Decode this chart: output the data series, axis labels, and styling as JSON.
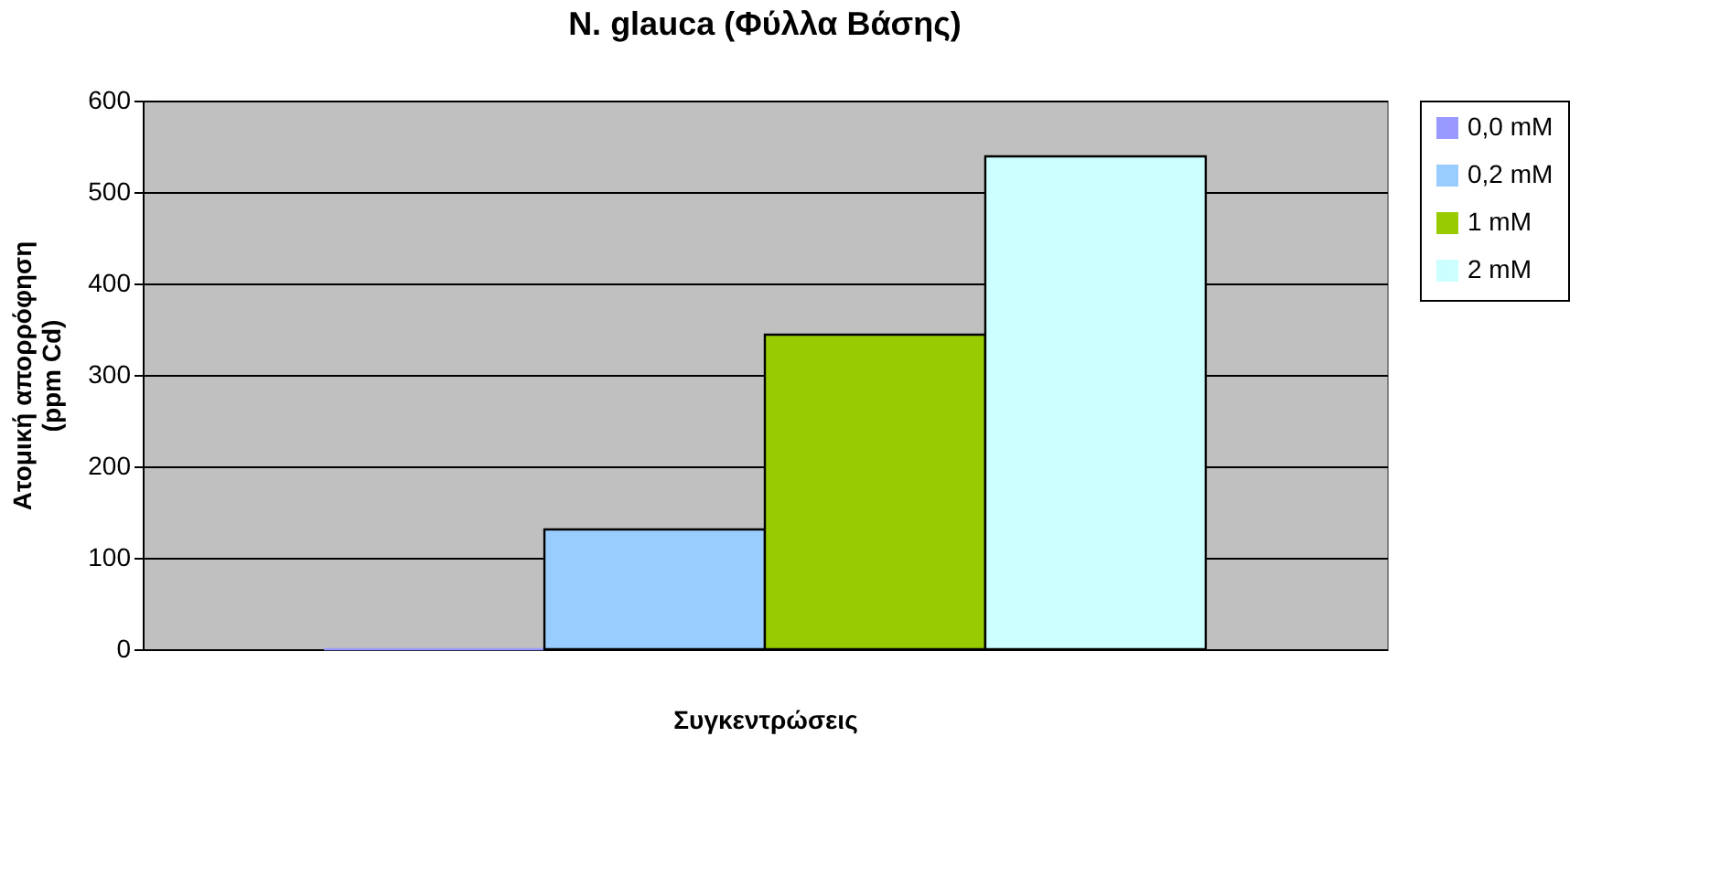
{
  "chart_data": {
    "type": "bar",
    "title": "N. glauca (Φύλλα Βάσης)",
    "xlabel": "Συγκεντρώσεις",
    "ylabel": "Ατομική απορρόφηση\n(ppm Cd)",
    "categories": [
      null
    ],
    "series": [
      {
        "name": "0,0 mM",
        "color": "#9999ff",
        "values": [
          0
        ]
      },
      {
        "name": "0,2 mM",
        "color": "#99ccff",
        "values": [
          131
        ]
      },
      {
        "name": "1 mM",
        "color": "#99cc00",
        "values": [
          344
        ]
      },
      {
        "name": "2 mM",
        "color": "#ccffff",
        "values": [
          539
        ]
      }
    ],
    "ylim": [
      0,
      600
    ],
    "yticks": [
      0,
      100,
      200,
      300,
      400,
      500,
      600
    ],
    "grid": "y",
    "legend": "right"
  }
}
